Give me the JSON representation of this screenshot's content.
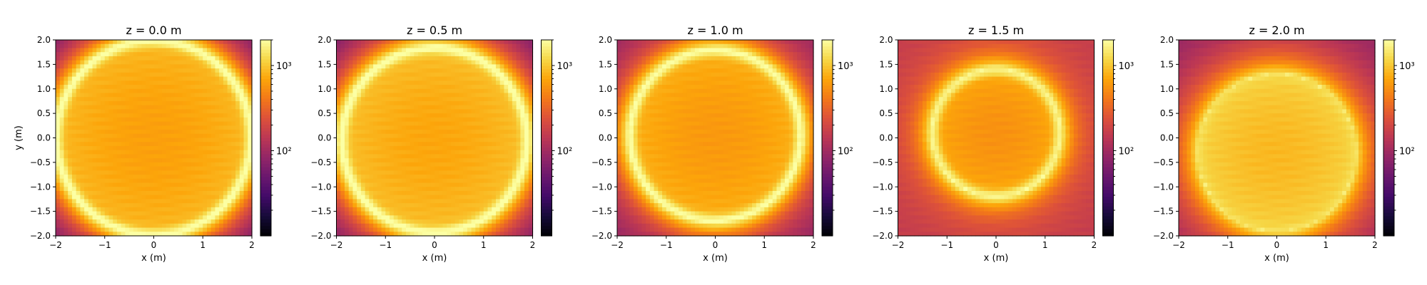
{
  "chart_data": [
    {
      "type": "heatmap",
      "title": "z = 0.0 m",
      "xlabel": "x (m)",
      "ylabel": "y (m)",
      "xlim": [
        -2,
        2
      ],
      "ylim": [
        -2,
        2
      ],
      "x_ticks": [
        "−2",
        "−1",
        "0",
        "1",
        "2"
      ],
      "y_ticks": [
        "2.0",
        "1.5",
        "1.0",
        "0.5",
        "0.0",
        "−0.5",
        "−1.0",
        "−1.5",
        "−2.0"
      ],
      "colormap": "inferno",
      "color_scale": "log",
      "colorbar_range": [
        10,
        2000
      ],
      "colorbar_ticks": [
        {
          "value": 100,
          "label": "10²"
        },
        {
          "value": 1000,
          "label": "10³"
        }
      ],
      "ring": {
        "center": [
          0,
          0
        ],
        "radius": 2.0,
        "peak": 1900
      },
      "interior_level": 650,
      "outside_level": 12
    },
    {
      "type": "heatmap",
      "title": "z = 0.5 m",
      "xlabel": "x (m)",
      "ylabel": "",
      "xlim": [
        -2,
        2
      ],
      "ylim": [
        -2,
        2
      ],
      "x_ticks": [
        "−2",
        "−1",
        "0",
        "1",
        "2"
      ],
      "y_ticks": [
        "2.0",
        "1.5",
        "1.0",
        "0.5",
        "0.0",
        "−0.5",
        "−1.0",
        "−1.5",
        "−2.0"
      ],
      "colormap": "inferno",
      "color_scale": "log",
      "colorbar_range": [
        10,
        2000
      ],
      "colorbar_ticks": [
        {
          "value": 100,
          "label": "10²"
        },
        {
          "value": 1000,
          "label": "10³"
        }
      ],
      "ring": {
        "center": [
          0,
          -0.05
        ],
        "radius": 1.9,
        "peak": 1900
      },
      "interior_level": 700,
      "outside_level": 20
    },
    {
      "type": "heatmap",
      "title": "z = 1.0 m",
      "xlabel": "x (m)",
      "ylabel": "",
      "xlim": [
        -2,
        2
      ],
      "ylim": [
        -2,
        2
      ],
      "x_ticks": [
        "−2",
        "−1",
        "0",
        "1",
        "2"
      ],
      "y_ticks": [
        "2.0",
        "1.5",
        "1.0",
        "0.5",
        "0.0",
        "−0.5",
        "−1.0",
        "−1.5",
        "−2.0"
      ],
      "colormap": "inferno",
      "color_scale": "log",
      "colorbar_range": [
        10,
        2000
      ],
      "colorbar_ticks": [
        {
          "value": 100,
          "label": "10²"
        },
        {
          "value": 1000,
          "label": "10³"
        }
      ],
      "ring": {
        "center": [
          0,
          0.05
        ],
        "radius": 1.75,
        "peak": 1800
      },
      "interior_level": 600,
      "outside_level": 60
    },
    {
      "type": "heatmap",
      "title": "z = 1.5 m",
      "xlabel": "x (m)",
      "ylabel": "",
      "xlim": [
        -2,
        2
      ],
      "ylim": [
        -2,
        2
      ],
      "x_ticks": [
        "−2",
        "−1",
        "0",
        "1",
        "2"
      ],
      "y_ticks": [
        "2.0",
        "1.5",
        "1.0",
        "0.5",
        "0.0",
        "−0.5",
        "−1.0",
        "−1.5",
        "−2.0"
      ],
      "colormap": "inferno",
      "color_scale": "log",
      "colorbar_range": [
        10,
        2000
      ],
      "colorbar_ticks": [
        {
          "value": 100,
          "label": "10²"
        },
        {
          "value": 1000,
          "label": "10³"
        }
      ],
      "ring": {
        "center": [
          0,
          0.1
        ],
        "radius": 1.3,
        "peak": 1500
      },
      "interior_level": 550,
      "outside_level": 150
    },
    {
      "type": "heatmap",
      "title": "z = 2.0 m",
      "xlabel": "x (m)",
      "ylabel": "",
      "xlim": [
        -2,
        2
      ],
      "ylim": [
        -2,
        2
      ],
      "x_ticks": [
        "−2",
        "−1",
        "0",
        "1",
        "2"
      ],
      "y_ticks": [
        "2.0",
        "1.5",
        "1.0",
        "0.5",
        "0.0",
        "−0.5",
        "−1.0",
        "−1.5",
        "−2.0"
      ],
      "colormap": "inferno",
      "color_scale": "log",
      "colorbar_range": [
        10,
        2000
      ],
      "colorbar_ticks": [
        {
          "value": 100,
          "label": "10²"
        },
        {
          "value": 1000,
          "label": "10³"
        }
      ],
      "ring": {
        "center": [
          0,
          -0.3
        ],
        "radius": 1.6,
        "peak": 1000
      },
      "interior_level": 850,
      "outside_level": 70
    }
  ]
}
